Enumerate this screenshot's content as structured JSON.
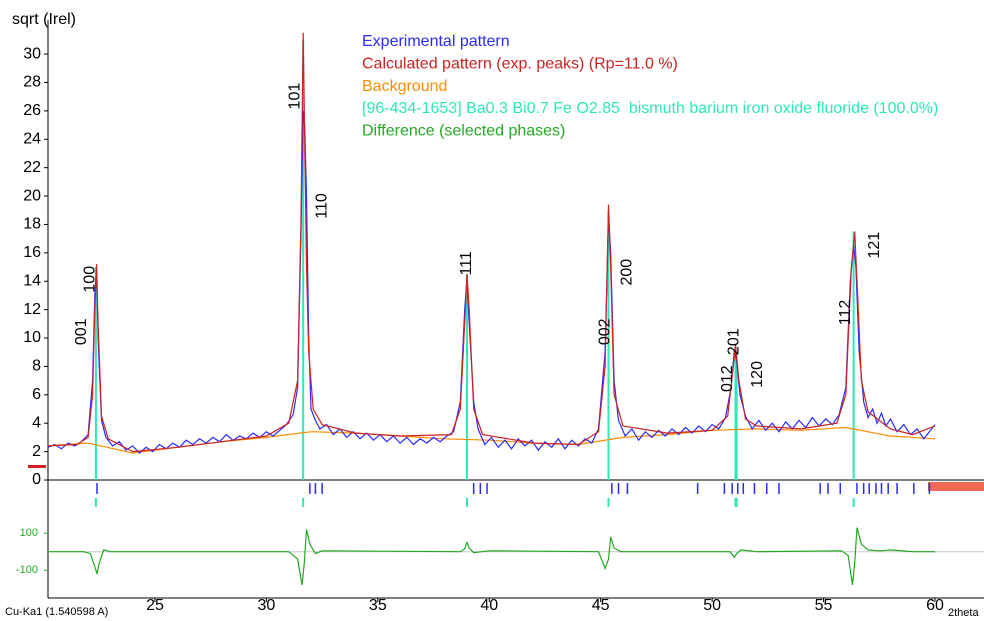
{
  "chart_data": [
    {
      "type": "line",
      "y_label": "sqrt (Irel)",
      "xlim": [
        20.2,
        62.2
      ],
      "ylim": [
        0,
        32.4
      ],
      "yticks": [
        0,
        2,
        4,
        6,
        8,
        10,
        12,
        14,
        16,
        18,
        20,
        22,
        24,
        26,
        28,
        30
      ],
      "series": [
        {
          "name": "Experimental pattern",
          "color": "#2b2bff",
          "style": "line",
          "x": [
            20.2,
            20.5,
            20.8,
            21.1,
            21.4,
            21.7,
            22.0,
            22.2,
            22.3,
            22.38,
            22.45,
            22.6,
            22.8,
            23.1,
            23.4,
            23.7,
            24.0,
            24.3,
            24.6,
            24.9,
            25.2,
            25.5,
            25.8,
            26.1,
            26.4,
            26.7,
            27.0,
            27.3,
            27.6,
            27.9,
            28.2,
            28.5,
            28.8,
            29.1,
            29.4,
            29.7,
            30.0,
            30.3,
            30.6,
            30.9,
            31.2,
            31.4,
            31.55,
            31.65,
            31.72,
            31.8,
            31.9,
            32.0,
            32.2,
            32.4,
            32.7,
            33.0,
            33.3,
            33.6,
            33.9,
            34.2,
            34.5,
            34.8,
            35.1,
            35.4,
            35.7,
            36.0,
            36.3,
            36.6,
            36.9,
            37.2,
            37.5,
            37.8,
            38.1,
            38.4,
            38.7,
            38.9,
            39.0,
            39.1,
            39.3,
            39.5,
            39.8,
            40.1,
            40.4,
            40.7,
            41.0,
            41.3,
            41.6,
            41.9,
            42.2,
            42.5,
            42.8,
            43.1,
            43.4,
            43.7,
            44.0,
            44.3,
            44.6,
            44.9,
            45.2,
            45.35,
            45.45,
            45.6,
            45.8,
            46.1,
            46.4,
            46.7,
            47.0,
            47.3,
            47.6,
            47.9,
            48.2,
            48.5,
            48.8,
            49.1,
            49.4,
            49.7,
            50.0,
            50.3,
            50.6,
            50.85,
            51.0,
            51.1,
            51.25,
            51.5,
            51.8,
            52.1,
            52.4,
            52.7,
            53.0,
            53.3,
            53.6,
            53.9,
            54.2,
            54.5,
            54.8,
            55.1,
            55.4,
            55.7,
            56.0,
            56.2,
            56.35,
            56.45,
            56.6,
            56.8,
            57.0,
            57.2,
            57.4,
            57.6,
            57.8,
            58.0,
            58.3,
            58.6,
            58.9,
            59.2,
            59.5,
            59.8,
            60.0
          ],
          "values": [
            2.3,
            2.5,
            2.2,
            2.6,
            2.4,
            2.7,
            3.2,
            7,
            13,
            14.8,
            10,
            4.2,
            3.0,
            2.4,
            2.7,
            2.1,
            2.4,
            1.9,
            2.3,
            2.0,
            2.5,
            2.2,
            2.6,
            2.3,
            2.8,
            2.5,
            2.9,
            2.6,
            3.0,
            2.7,
            3.2,
            2.8,
            3.1,
            2.9,
            3.3,
            3.0,
            3.4,
            3.1,
            3.5,
            3.9,
            4.6,
            6.5,
            17,
            26,
            25,
            20,
            10,
            5,
            4.2,
            3.6,
            3.9,
            3.2,
            3.6,
            3.0,
            3.4,
            2.9,
            3.3,
            2.8,
            3.2,
            2.7,
            3.1,
            2.6,
            3.0,
            2.5,
            2.9,
            2.6,
            3.0,
            2.7,
            3.1,
            3.4,
            5.5,
            12,
            14.2,
            11,
            5.5,
            3.6,
            2.5,
            3.0,
            2.3,
            2.8,
            2.2,
            2.9,
            2.4,
            2.8,
            2.1,
            2.7,
            2.3,
            2.9,
            2.2,
            2.8,
            2.4,
            2.9,
            2.6,
            3.6,
            9,
            18.5,
            16,
            7,
            4.2,
            3.1,
            3.6,
            2.8,
            3.4,
            3.0,
            3.5,
            3.1,
            3.6,
            3.2,
            3.7,
            3.3,
            3.8,
            3.4,
            3.9,
            3.6,
            4.4,
            6.5,
            9.2,
            8.4,
            6,
            4.5,
            3.6,
            4.2,
            3.5,
            4.0,
            3.4,
            4.1,
            3.6,
            4.2,
            3.7,
            4.4,
            3.8,
            4.3,
            3.9,
            4.6,
            6.5,
            14,
            16.5,
            15,
            9,
            5.5,
            4.4,
            5.0,
            4.0,
            4.7,
            3.8,
            4.3,
            3.4,
            3.9,
            3.2,
            3.6,
            2.9,
            3.5,
            3.9
          ]
        },
        {
          "name": "Calculated pattern (exp. peaks) (Rp=11.0 %)",
          "color": "#cc2222",
          "style": "line",
          "x": [
            20.2,
            21.5,
            22.0,
            22.2,
            22.3,
            22.38,
            22.45,
            22.6,
            22.9,
            24,
            26,
            28,
            30,
            31.0,
            31.4,
            31.55,
            31.65,
            31.72,
            31.8,
            31.9,
            32.1,
            32.5,
            34,
            36,
            38.3,
            38.7,
            38.9,
            39.0,
            39.1,
            39.3,
            39.7,
            42,
            44,
            44.9,
            45.2,
            45.35,
            45.45,
            45.6,
            46.0,
            48,
            50,
            50.7,
            50.95,
            51.05,
            51.2,
            51.5,
            52,
            54,
            55.6,
            56.0,
            56.25,
            56.4,
            56.5,
            56.7,
            57.0,
            58,
            59,
            60
          ],
          "values": [
            2.4,
            2.5,
            3.0,
            6,
            12,
            15.2,
            11,
            4.5,
            2.9,
            2.0,
            2.3,
            2.7,
            3.1,
            4.0,
            7,
            18,
            31.5,
            24,
            15,
            9,
            5,
            3.9,
            3.3,
            3.1,
            3.2,
            5,
            11,
            14.5,
            12,
            5,
            3.2,
            2.6,
            2.5,
            3.4,
            8,
            19.4,
            15,
            6,
            3.8,
            3.3,
            3.5,
            4.5,
            8,
            9.5,
            7,
            4.3,
            3.8,
            3.6,
            4.0,
            6,
            15,
            17.5,
            14,
            7,
            4.8,
            3.6,
            3.2,
            3.8
          ]
        },
        {
          "name": "Background",
          "color": "#ff8c00",
          "style": "line",
          "x": [
            20.2,
            22,
            24,
            26,
            28,
            30,
            32,
            34,
            36,
            38,
            40,
            42,
            44,
            46,
            48,
            50,
            52,
            54,
            56,
            58,
            60
          ],
          "values": [
            2.4,
            2.6,
            1.9,
            2.3,
            2.7,
            3.0,
            3.4,
            3.3,
            3.1,
            2.9,
            2.8,
            2.6,
            2.5,
            3.0,
            3.2,
            3.5,
            3.6,
            3.5,
            3.7,
            3.1,
            2.9
          ]
        },
        {
          "name": "[96-434-1653] Ba0.3 Bi0.7 Fe O2.85  bismuth barium iron oxide fluoride (100.0%)",
          "color": "#2ee8b6",
          "style": "sticks",
          "x": [
            22.35,
            31.65,
            39.0,
            45.35,
            51.05,
            51.1,
            56.35
          ],
          "values": [
            15,
            31,
            14.5,
            19,
            9.5,
            9,
            17.5
          ]
        }
      ],
      "reflection_ticks": {
        "color": "#2b2bff",
        "x": [
          22.4,
          31.95,
          32.2,
          32.5,
          39.3,
          39.6,
          39.9,
          45.5,
          45.8,
          46.2,
          49.35,
          50.55,
          50.9,
          51.15,
          51.4,
          51.9,
          52.45,
          53.0,
          54.85,
          55.2,
          55.75,
          56.5,
          56.8,
          57.05,
          57.35,
          57.6,
          57.9,
          58.3,
          59.05,
          59.75
        ]
      },
      "annotations": [
        {
          "text": "001",
          "x": 21.72,
          "y": 9.5
        },
        {
          "text": "100",
          "x": 22.1,
          "y": 13.2
        },
        {
          "text": "101",
          "x": 31.3,
          "y": 26.1
        },
        {
          "text": "110",
          "x": 32.5,
          "y": 18.4
        },
        {
          "text": "111",
          "x": 39.0,
          "y": 14.4
        },
        {
          "text": "002",
          "x": 45.2,
          "y": 9.5
        },
        {
          "text": "200",
          "x": 46.2,
          "y": 13.7
        },
        {
          "text": "012",
          "x": 50.7,
          "y": 6.2
        },
        {
          "text": "201",
          "x": 51.0,
          "y": 8.8
        },
        {
          "text": "120",
          "x": 52.05,
          "y": 6.5
        },
        {
          "text": "112",
          "x": 56.0,
          "y": 10.9
        },
        {
          "text": "121",
          "x": 57.3,
          "y": 15.6
        }
      ]
    },
    {
      "type": "line",
      "x_label": "2theta",
      "note": "Cu-Ka1 (1.540598 A)",
      "xlim": [
        20.2,
        62.2
      ],
      "ylim": [
        -250,
        220
      ],
      "xticks": [
        25,
        30,
        35,
        40,
        45,
        50,
        55,
        60
      ],
      "yticks": [
        -100,
        100
      ],
      "tick_color": "#22aa22",
      "series": [
        {
          "name": "Difference (selected phases)",
          "color": "#22aa22",
          "style": "line",
          "x": [
            20.2,
            21.8,
            22.1,
            22.3,
            22.4,
            22.5,
            22.7,
            23,
            31.0,
            31.4,
            31.6,
            31.7,
            31.8,
            31.95,
            32.2,
            32.5,
            38.7,
            38.9,
            39.0,
            39.1,
            39.3,
            40,
            44.9,
            45.2,
            45.35,
            45.45,
            45.6,
            45.9,
            50.8,
            51.0,
            51.1,
            51.3,
            52,
            55.8,
            56.1,
            56.3,
            56.4,
            56.5,
            56.7,
            57.0,
            57.5,
            58,
            59,
            60
          ],
          "values": [
            0,
            0,
            -10,
            -80,
            -120,
            -60,
            10,
            0,
            0,
            -40,
            -180,
            -60,
            120,
            40,
            -10,
            5,
            0,
            15,
            50,
            20,
            -5,
            5,
            0,
            -90,
            -40,
            80,
            20,
            0,
            0,
            -30,
            -10,
            10,
            0,
            5,
            -20,
            -180,
            -60,
            130,
            40,
            10,
            5,
            10,
            0,
            0
          ]
        }
      ]
    }
  ]
}
